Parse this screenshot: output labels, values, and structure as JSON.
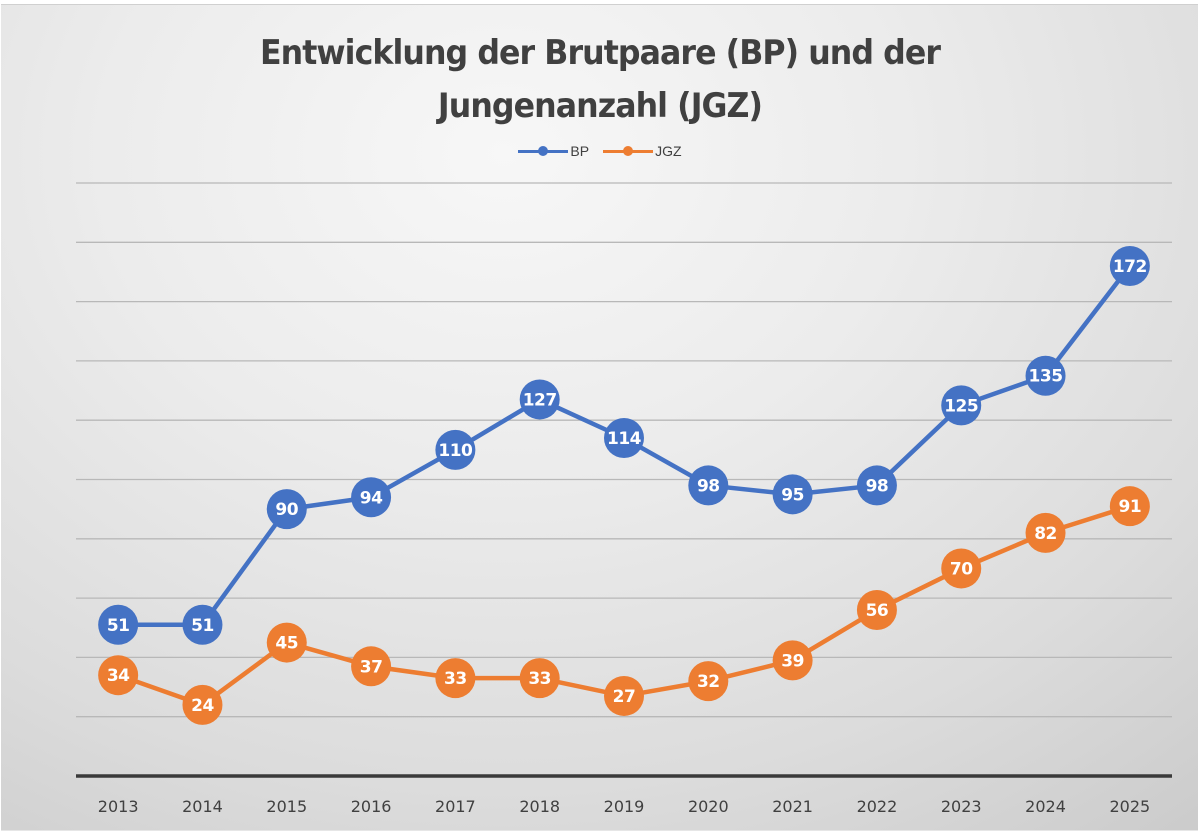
{
  "chart_data": {
    "type": "line",
    "title": "Entwicklung der Brutpaare (BP) und der Jungenanzahl (JGZ)",
    "title_lines": [
      "Entwicklung der Brutpaare (BP) und der",
      "Jungenanzahl (JGZ)"
    ],
    "xlabel": "",
    "ylabel": "",
    "categories": [
      "2013",
      "2014",
      "2015",
      "2016",
      "2017",
      "2018",
      "2019",
      "2020",
      "2021",
      "2022",
      "2023",
      "2024",
      "2025"
    ],
    "series": [
      {
        "name": "BP",
        "color": "#4472c4",
        "values": [
          51,
          51,
          90,
          94,
          110,
          127,
          114,
          98,
          95,
          98,
          125,
          135,
          172
        ]
      },
      {
        "name": "JGZ",
        "color": "#ed7d31",
        "values": [
          34,
          24,
          45,
          37,
          33,
          33,
          27,
          32,
          39,
          56,
          70,
          82,
          91
        ]
      }
    ],
    "ylim": [
      0,
      200
    ],
    "y_gridline_step": 20,
    "y_tick_labels_shown": false,
    "grid": true,
    "data_labels": true,
    "legend_position": "top"
  },
  "colors": {
    "title": "#404040",
    "axis": "#3a3a3a",
    "gridline": "#b8b8b8",
    "label_text": "#ffffff"
  }
}
